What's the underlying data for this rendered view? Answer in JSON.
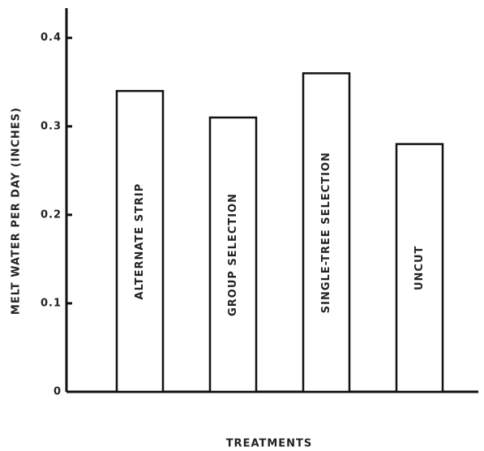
{
  "chart_data": {
    "type": "bar",
    "y_label": "MELT WATER PER DAY (INCHES)",
    "x_label": "TREATMENTS",
    "categories": [
      "ALTERNATE STRIP",
      "GROUP SELECTION",
      "SINGLE-TREE SELECTION",
      "UNCUT"
    ],
    "values": [
      0.34,
      0.31,
      0.36,
      0.28
    ],
    "color": "#ffffff",
    "ylim": [
      0,
      0.43
    ],
    "yticks": [
      0,
      0.1,
      0.2,
      0.3,
      0.4
    ],
    "grid": false
  }
}
